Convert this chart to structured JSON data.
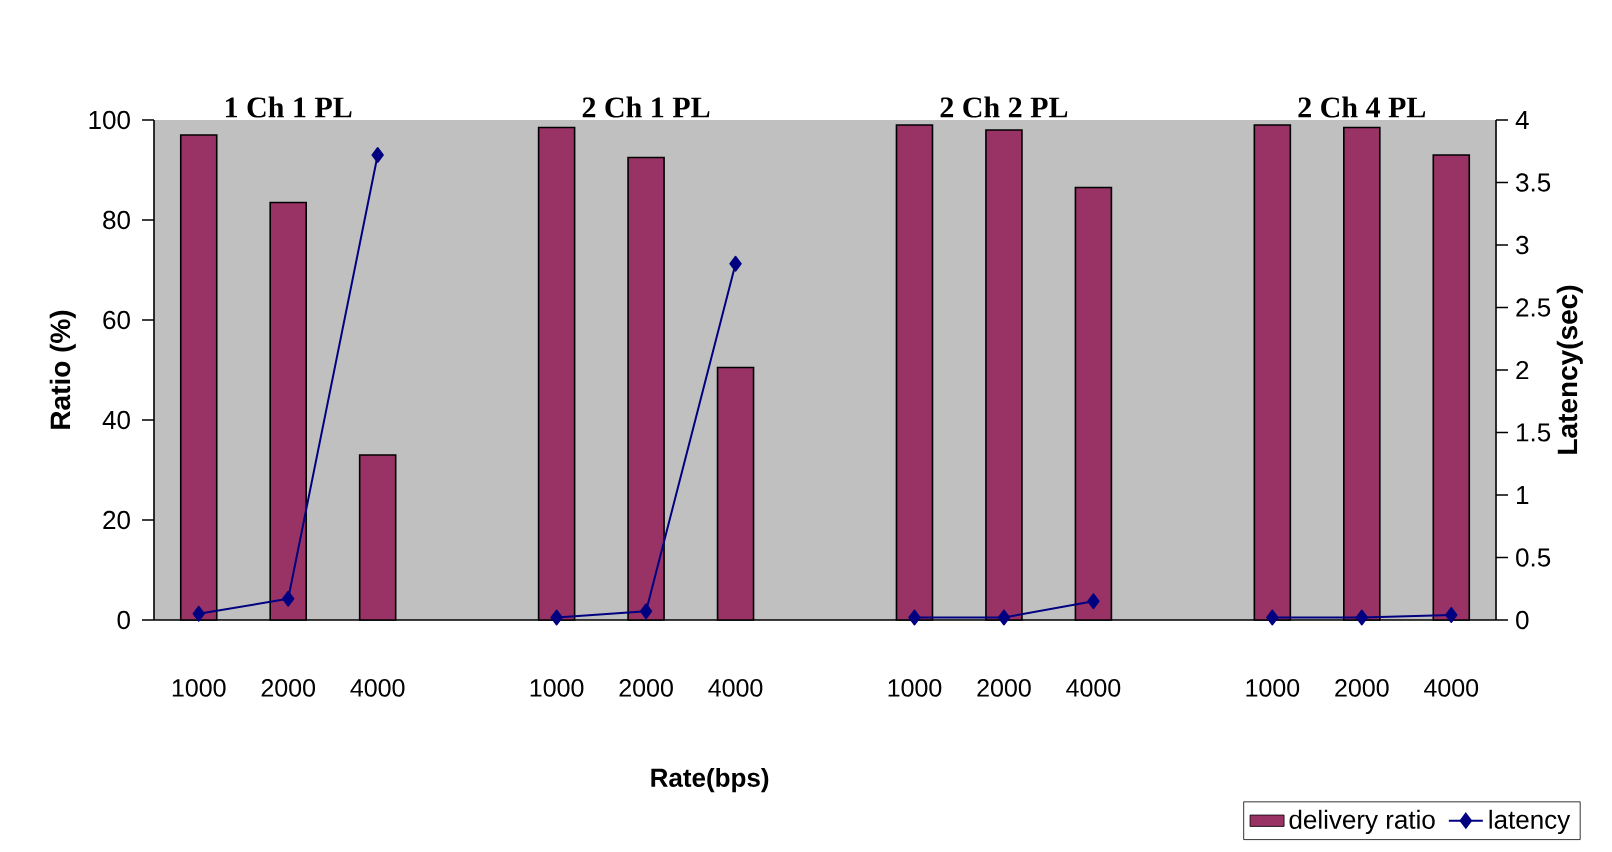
{
  "chart_data": {
    "type": "bar",
    "xlabel": "Rate(bps)",
    "ylabel": "Ratio (%)",
    "y2label": "Latency(sec)",
    "annotations": [
      "1 Ch 1 PL",
      "2 Ch 1 PL",
      "2 Ch 2 PL",
      "2 Ch 4 PL"
    ],
    "categories": [
      "1000",
      "2000",
      "4000",
      null,
      "1000",
      "2000",
      "4000",
      null,
      "1000",
      "2000",
      "4000",
      null,
      "1000",
      "2000",
      "4000"
    ],
    "series": [
      {
        "name": "delivery ratio",
        "color": "#993366",
        "values": [
          97,
          83.5,
          33,
          null,
          98.5,
          92.5,
          50.5,
          null,
          99,
          98,
          86.5,
          null,
          99,
          98.5,
          93
        ]
      },
      {
        "name": "latency",
        "type": "line",
        "axis": "y2",
        "color": "#000080",
        "marker": "diamond",
        "values": [
          0.05,
          0.17,
          3.72,
          null,
          0.02,
          0.07,
          2.85,
          null,
          0.02,
          0.02,
          0.15,
          null,
          0.02,
          0.02,
          0.04
        ]
      }
    ],
    "ylim": [
      0,
      100
    ],
    "yticks": [
      0,
      20,
      40,
      60,
      80,
      100
    ],
    "y2lim": [
      0,
      4
    ],
    "y2ticks": [
      0,
      0.5,
      1,
      1.5,
      2,
      2.5,
      3,
      3.5,
      4
    ],
    "legend": "bottom right"
  }
}
